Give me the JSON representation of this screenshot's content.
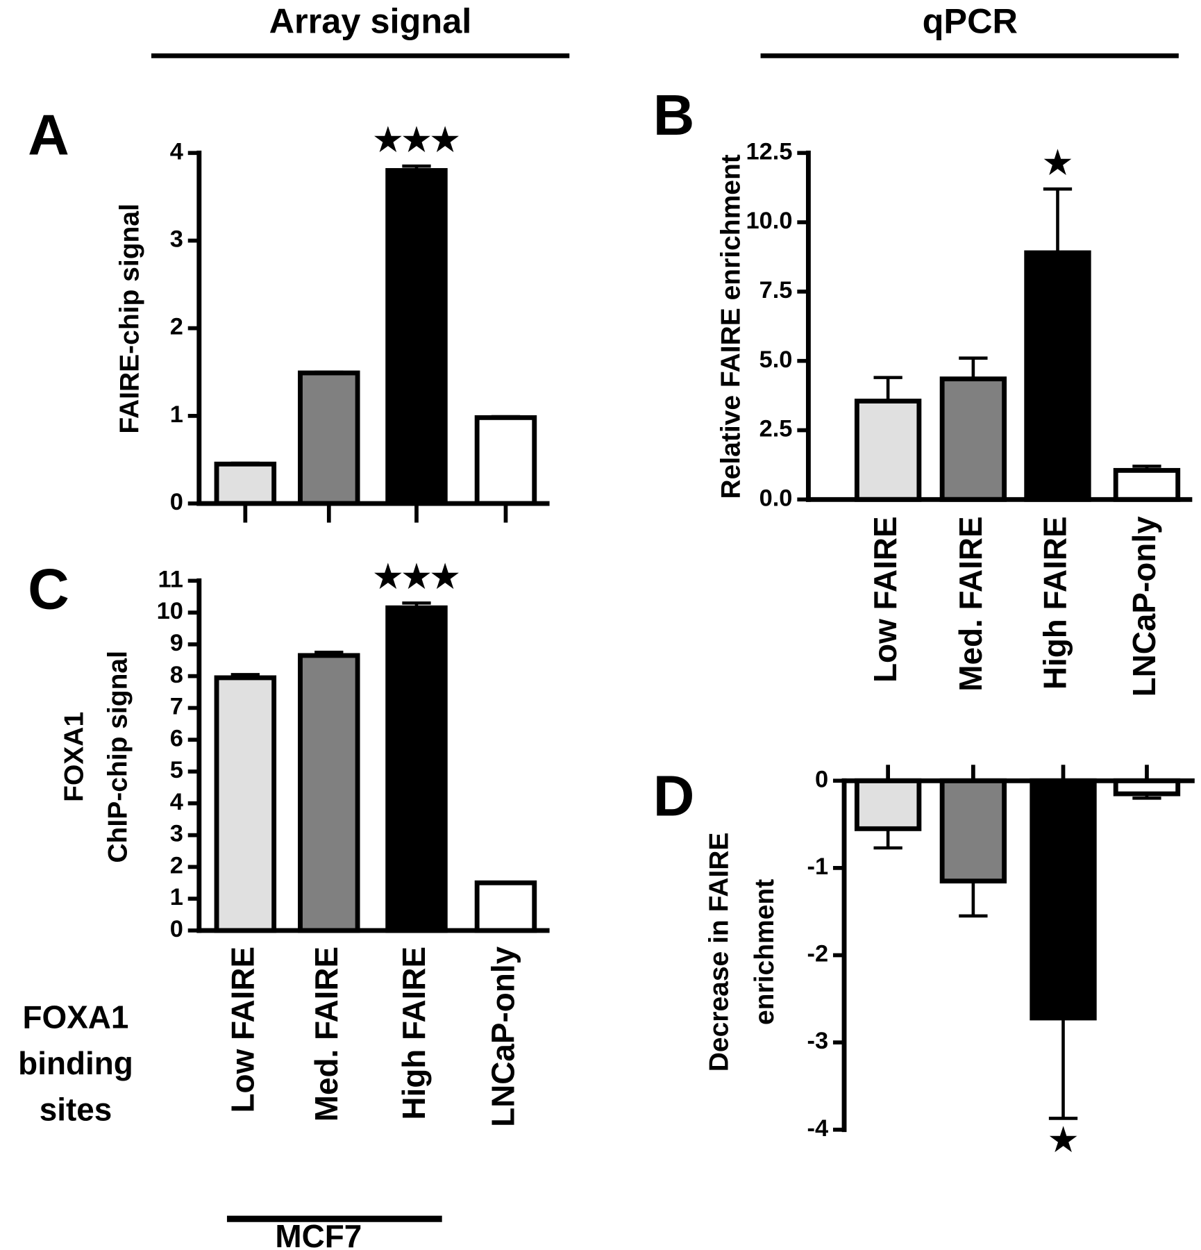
{
  "headers": {
    "left": "Array signal",
    "right": "qPCR",
    "row_label": [
      "FOXA1",
      "binding",
      "sites"
    ],
    "group": "MCF7"
  },
  "chart_data": [
    {
      "type": "bar",
      "panel_label": "A",
      "ylabel": [
        "FAIRE-chip signal"
      ],
      "categories": [
        null,
        null,
        null,
        null
      ],
      "values": [
        0.45,
        1.49,
        3.8,
        0.98
      ],
      "errors": [
        0.01,
        0.01,
        0.05,
        0.01
      ],
      "colors": [
        "#e0e0e0",
        "#808080",
        "#000000",
        "#ffffff"
      ],
      "ylim": [
        0,
        4
      ],
      "yticks": [
        0,
        1,
        2,
        3,
        4
      ],
      "annotation": "★★★"
    },
    {
      "type": "bar",
      "panel_label": "B",
      "ylabel": [
        "Relative FAIRE enrichment"
      ],
      "categories": [
        "Low FAIRE",
        "Med. FAIRE",
        "High FAIRE",
        "LNCaP-only"
      ],
      "values": [
        3.55,
        4.35,
        8.9,
        1.05
      ],
      "errors": [
        0.85,
        0.75,
        2.3,
        0.15
      ],
      "colors": [
        "#e0e0e0",
        "#808080",
        "#000000",
        "#ffffff"
      ],
      "ylim": [
        0,
        12.5
      ],
      "yticks": [
        {
          "value": 0,
          "label": "0.0"
        },
        {
          "value": 2.5,
          "label": "2.5"
        },
        {
          "value": 5,
          "label": "5.0"
        },
        {
          "value": 7.5,
          "label": "7.5"
        },
        {
          "value": 10,
          "label": "10.0"
        },
        {
          "value": 12.5,
          "label": "12.5"
        }
      ],
      "annotation": "★"
    },
    {
      "type": "bar",
      "panel_label": "C",
      "ylabel": [
        "FOXA1",
        "ChIP-chip signal"
      ],
      "categories": [
        "Low FAIRE",
        "Med. FAIRE",
        "High FAIRE",
        "LNCaP-only"
      ],
      "values": [
        7.95,
        8.65,
        10.15,
        1.5
      ],
      "errors": [
        0.1,
        0.1,
        0.15,
        0.02
      ],
      "colors": [
        "#e0e0e0",
        "#808080",
        "#000000",
        "#ffffff"
      ],
      "ylim": [
        0,
        11
      ],
      "yticks": [
        0,
        1,
        2,
        3,
        4,
        5,
        6,
        7,
        8,
        9,
        10,
        11
      ],
      "annotation": "★★★"
    },
    {
      "type": "bar",
      "panel_label": "D",
      "ylabel": [
        "Decrease in FAIRE",
        "enrichment"
      ],
      "categories": [
        null,
        null,
        null,
        null
      ],
      "values": [
        -0.55,
        -1.15,
        -2.72,
        -0.15
      ],
      "errors": [
        0.22,
        0.4,
        1.15,
        0.05
      ],
      "colors": [
        "#e0e0e0",
        "#808080",
        "#000000",
        "#ffffff"
      ],
      "ylim": [
        -4,
        0
      ],
      "yticks": [
        0,
        -1,
        -2,
        -3,
        -4
      ],
      "annotation": "★"
    }
  ]
}
